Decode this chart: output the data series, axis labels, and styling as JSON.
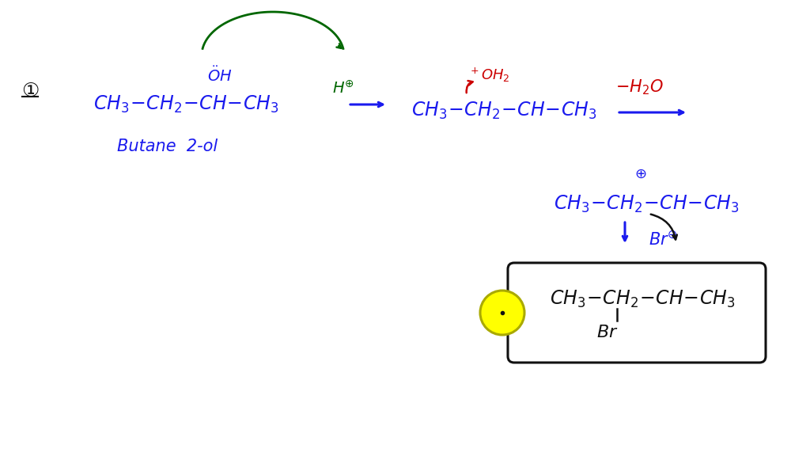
{
  "bg_color": "#ffffff",
  "figsize": [
    10.24,
    5.76
  ],
  "dpi": 100,
  "blue": "#1a1aee",
  "red": "#cc0000",
  "green": "#006600",
  "black": "#111111",
  "yellow": "#ffff00",
  "yellow_edge": "#aaaa00"
}
